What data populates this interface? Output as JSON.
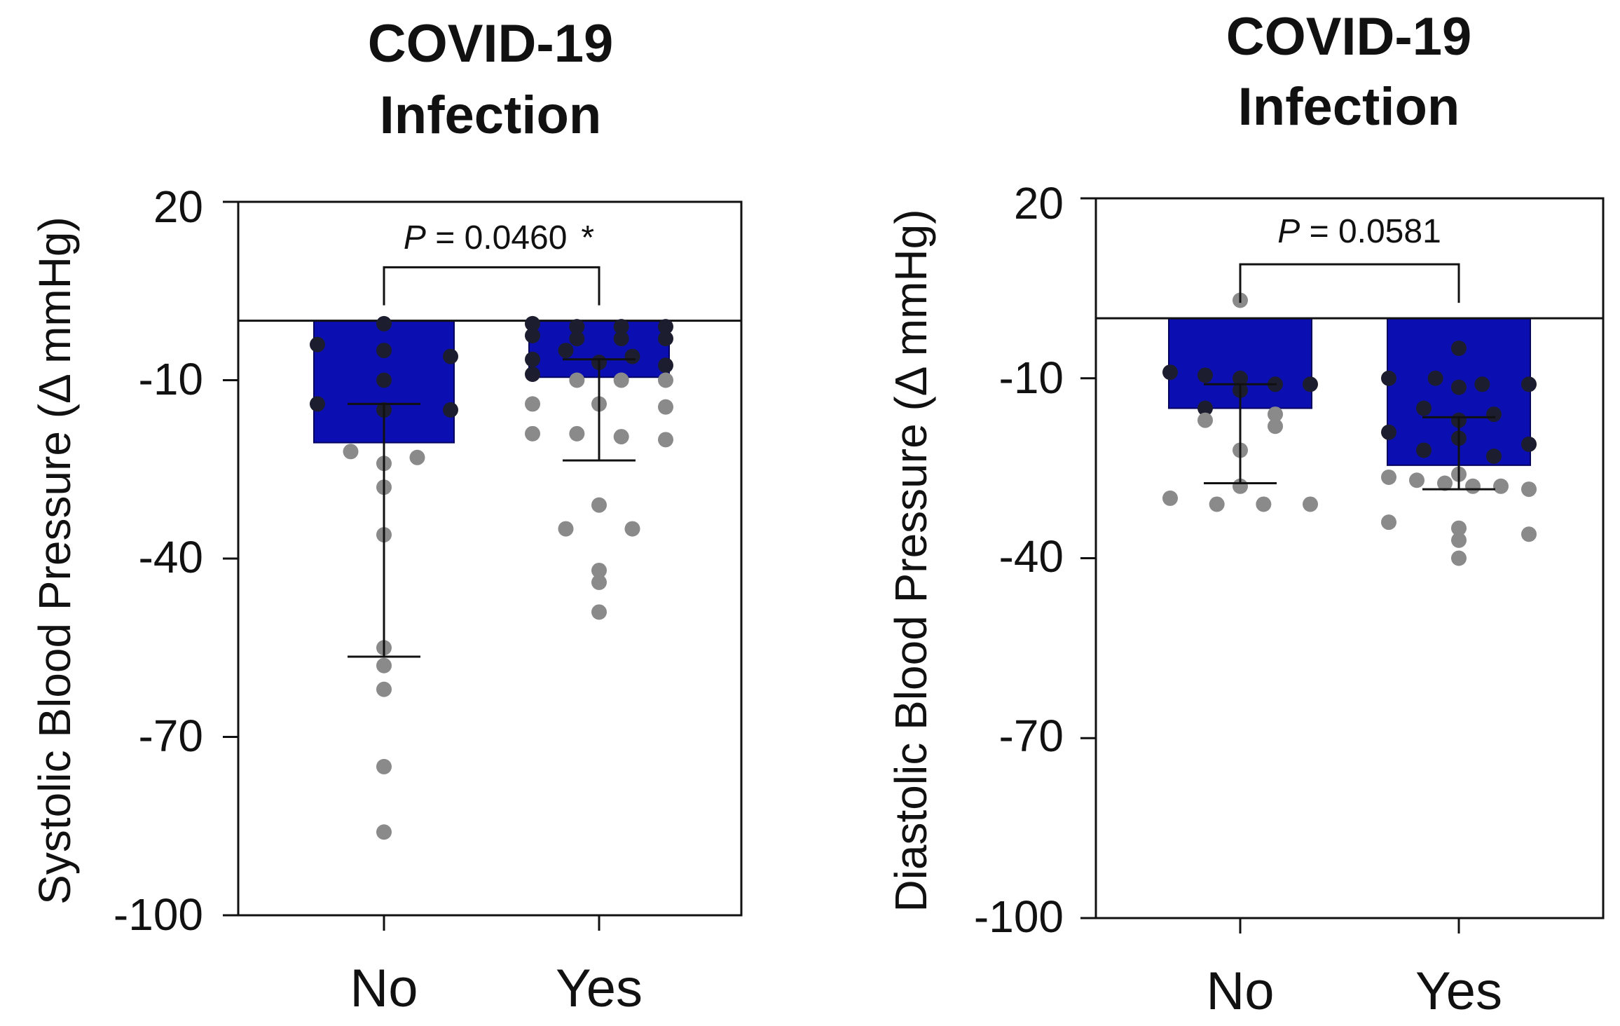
{
  "colors": {
    "bar": "#0b0fb2",
    "dot_on_bar": "#1d1d30",
    "dot_outside": "#8a8a8a",
    "axis": "#111111"
  },
  "chart_data": [
    {
      "type": "bar",
      "title_lines": [
        "COVID-19",
        "Infection"
      ],
      "ylabel": "Systolic Blood Pressure (Δ mmHg)",
      "categories": [
        "No",
        "Yes"
      ],
      "values": [
        -20.5,
        -9.5
      ],
      "error_bars": [
        {
          "low": -56.5,
          "high": -14.0
        },
        {
          "low": -23.5,
          "high": -6.5
        }
      ],
      "points": [
        [
          -0.5,
          -4,
          -5,
          -6,
          -10,
          -14,
          -15,
          -15,
          -22,
          -23,
          -24,
          -28,
          -36,
          -55,
          -58,
          -62,
          -75,
          -86
        ],
        [
          -0.5,
          -1,
          -1,
          -1,
          -2.5,
          -3,
          -3,
          -3,
          -5,
          -6,
          -6.5,
          -7,
          -7.5,
          -9,
          -10,
          -10,
          -10,
          -14,
          -14,
          -14.5,
          -19,
          -19,
          -19.5,
          -20,
          -31,
          -35,
          -35,
          -42,
          -44,
          -49
        ]
      ],
      "ylim": [
        -100,
        20
      ],
      "yticks": [
        20,
        -10,
        -40,
        -70,
        -100
      ],
      "comparison": {
        "p_label": "P",
        "p_value_text": " = 0.0460",
        "marker": "*",
        "bracket_y": 9
      }
    },
    {
      "type": "bar",
      "title_lines": [
        "COVID-19",
        "Infection"
      ],
      "ylabel": "Diastolic Blood Pressure (Δ mmHg)",
      "categories": [
        "No",
        "Yes"
      ],
      "values": [
        -15.0,
        -24.5
      ],
      "error_bars": [
        {
          "low": -27.5,
          "high": -11.0
        },
        {
          "low": -28.5,
          "high": -16.5
        }
      ],
      "points": [
        [
          3,
          -9,
          -9.5,
          -10,
          -11,
          -11,
          -12,
          -15,
          -16,
          -17,
          -18,
          -22,
          -28,
          -30,
          -31,
          -31,
          -31
        ],
        [
          -5,
          -10,
          -10,
          -11,
          -11,
          -11.5,
          -15,
          -16,
          -17,
          -19,
          -20,
          -21,
          -22,
          -23,
          -26,
          -26.5,
          -27,
          -27.5,
          -28,
          -28,
          -28.5,
          -34,
          -35,
          -36,
          -37,
          -40
        ]
      ],
      "ylim": [
        -100,
        20
      ],
      "yticks": [
        20,
        -10,
        -40,
        -70,
        -100
      ],
      "comparison": {
        "p_label": "P",
        "p_value_text": " = 0.0581",
        "marker": "",
        "bracket_y": 9
      }
    }
  ]
}
